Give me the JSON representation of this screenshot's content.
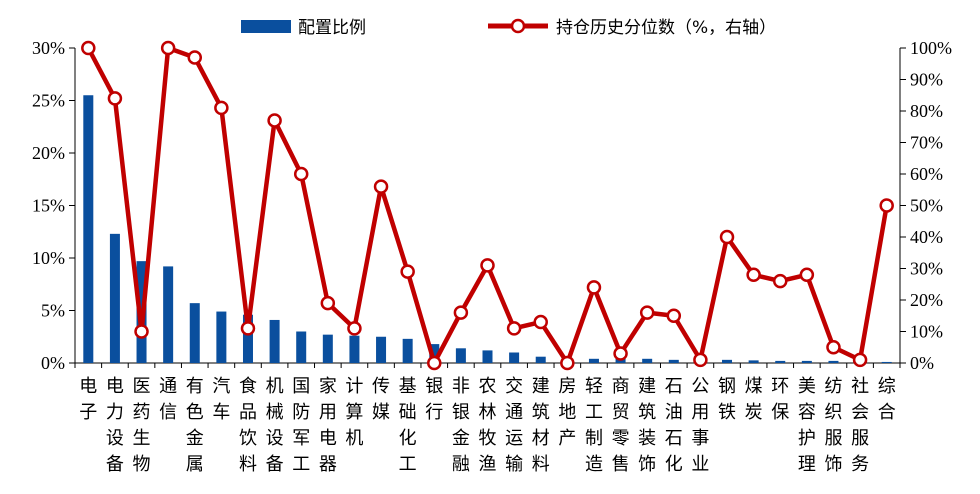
{
  "chart_data": {
    "type": "bar",
    "categories": [
      "电子",
      "电力设备",
      "医药生物",
      "通信",
      "有色金属",
      "汽车",
      "食品饮料",
      "机械设备",
      "国防军工",
      "家用电器",
      "计算机",
      "传媒",
      "基础化工",
      "银行",
      "非银金融",
      "农林牧渔",
      "交通运输",
      "建筑材料",
      "房地产",
      "轻工制造",
      "商贸零售",
      "建筑装饰",
      "石油石化",
      "公用事业",
      "钢铁",
      "煤炭",
      "环保",
      "美容护理",
      "纺织服饰",
      "社会服务",
      "综合"
    ],
    "series": [
      {
        "name": "配置比例",
        "type": "bar",
        "axis": "left",
        "color": "#0a4f9e",
        "values": [
          25.5,
          12.3,
          9.7,
          9.2,
          5.7,
          4.9,
          4.6,
          4.1,
          3.0,
          2.7,
          2.6,
          2.5,
          2.3,
          1.8,
          1.4,
          1.2,
          1.0,
          0.6,
          0.1,
          0.4,
          0.5,
          0.4,
          0.3,
          0.2,
          0.3,
          0.25,
          0.2,
          0.2,
          0.2,
          0.15,
          0.1
        ]
      },
      {
        "name": "持仓历史分位数（%，右轴）",
        "type": "line",
        "axis": "right",
        "color": "#c00000",
        "values": [
          100,
          84,
          10,
          100,
          97,
          81,
          11,
          77,
          60,
          19,
          11,
          56,
          29,
          0,
          16,
          31,
          11,
          13,
          0,
          24,
          3,
          16,
          15,
          1,
          40,
          28,
          26,
          28,
          5,
          1,
          50
        ]
      }
    ],
    "y_left": {
      "ticks": [
        "0%",
        "5%",
        "10%",
        "15%",
        "20%",
        "25%",
        "30%"
      ],
      "range": [
        0,
        30
      ]
    },
    "y_right": {
      "ticks": [
        "0%",
        "10%",
        "20%",
        "30%",
        "40%",
        "50%",
        "60%",
        "70%",
        "80%",
        "90%",
        "100%"
      ],
      "range": [
        0,
        100
      ]
    },
    "legend": {
      "position": "top-center"
    },
    "grid": false
  }
}
